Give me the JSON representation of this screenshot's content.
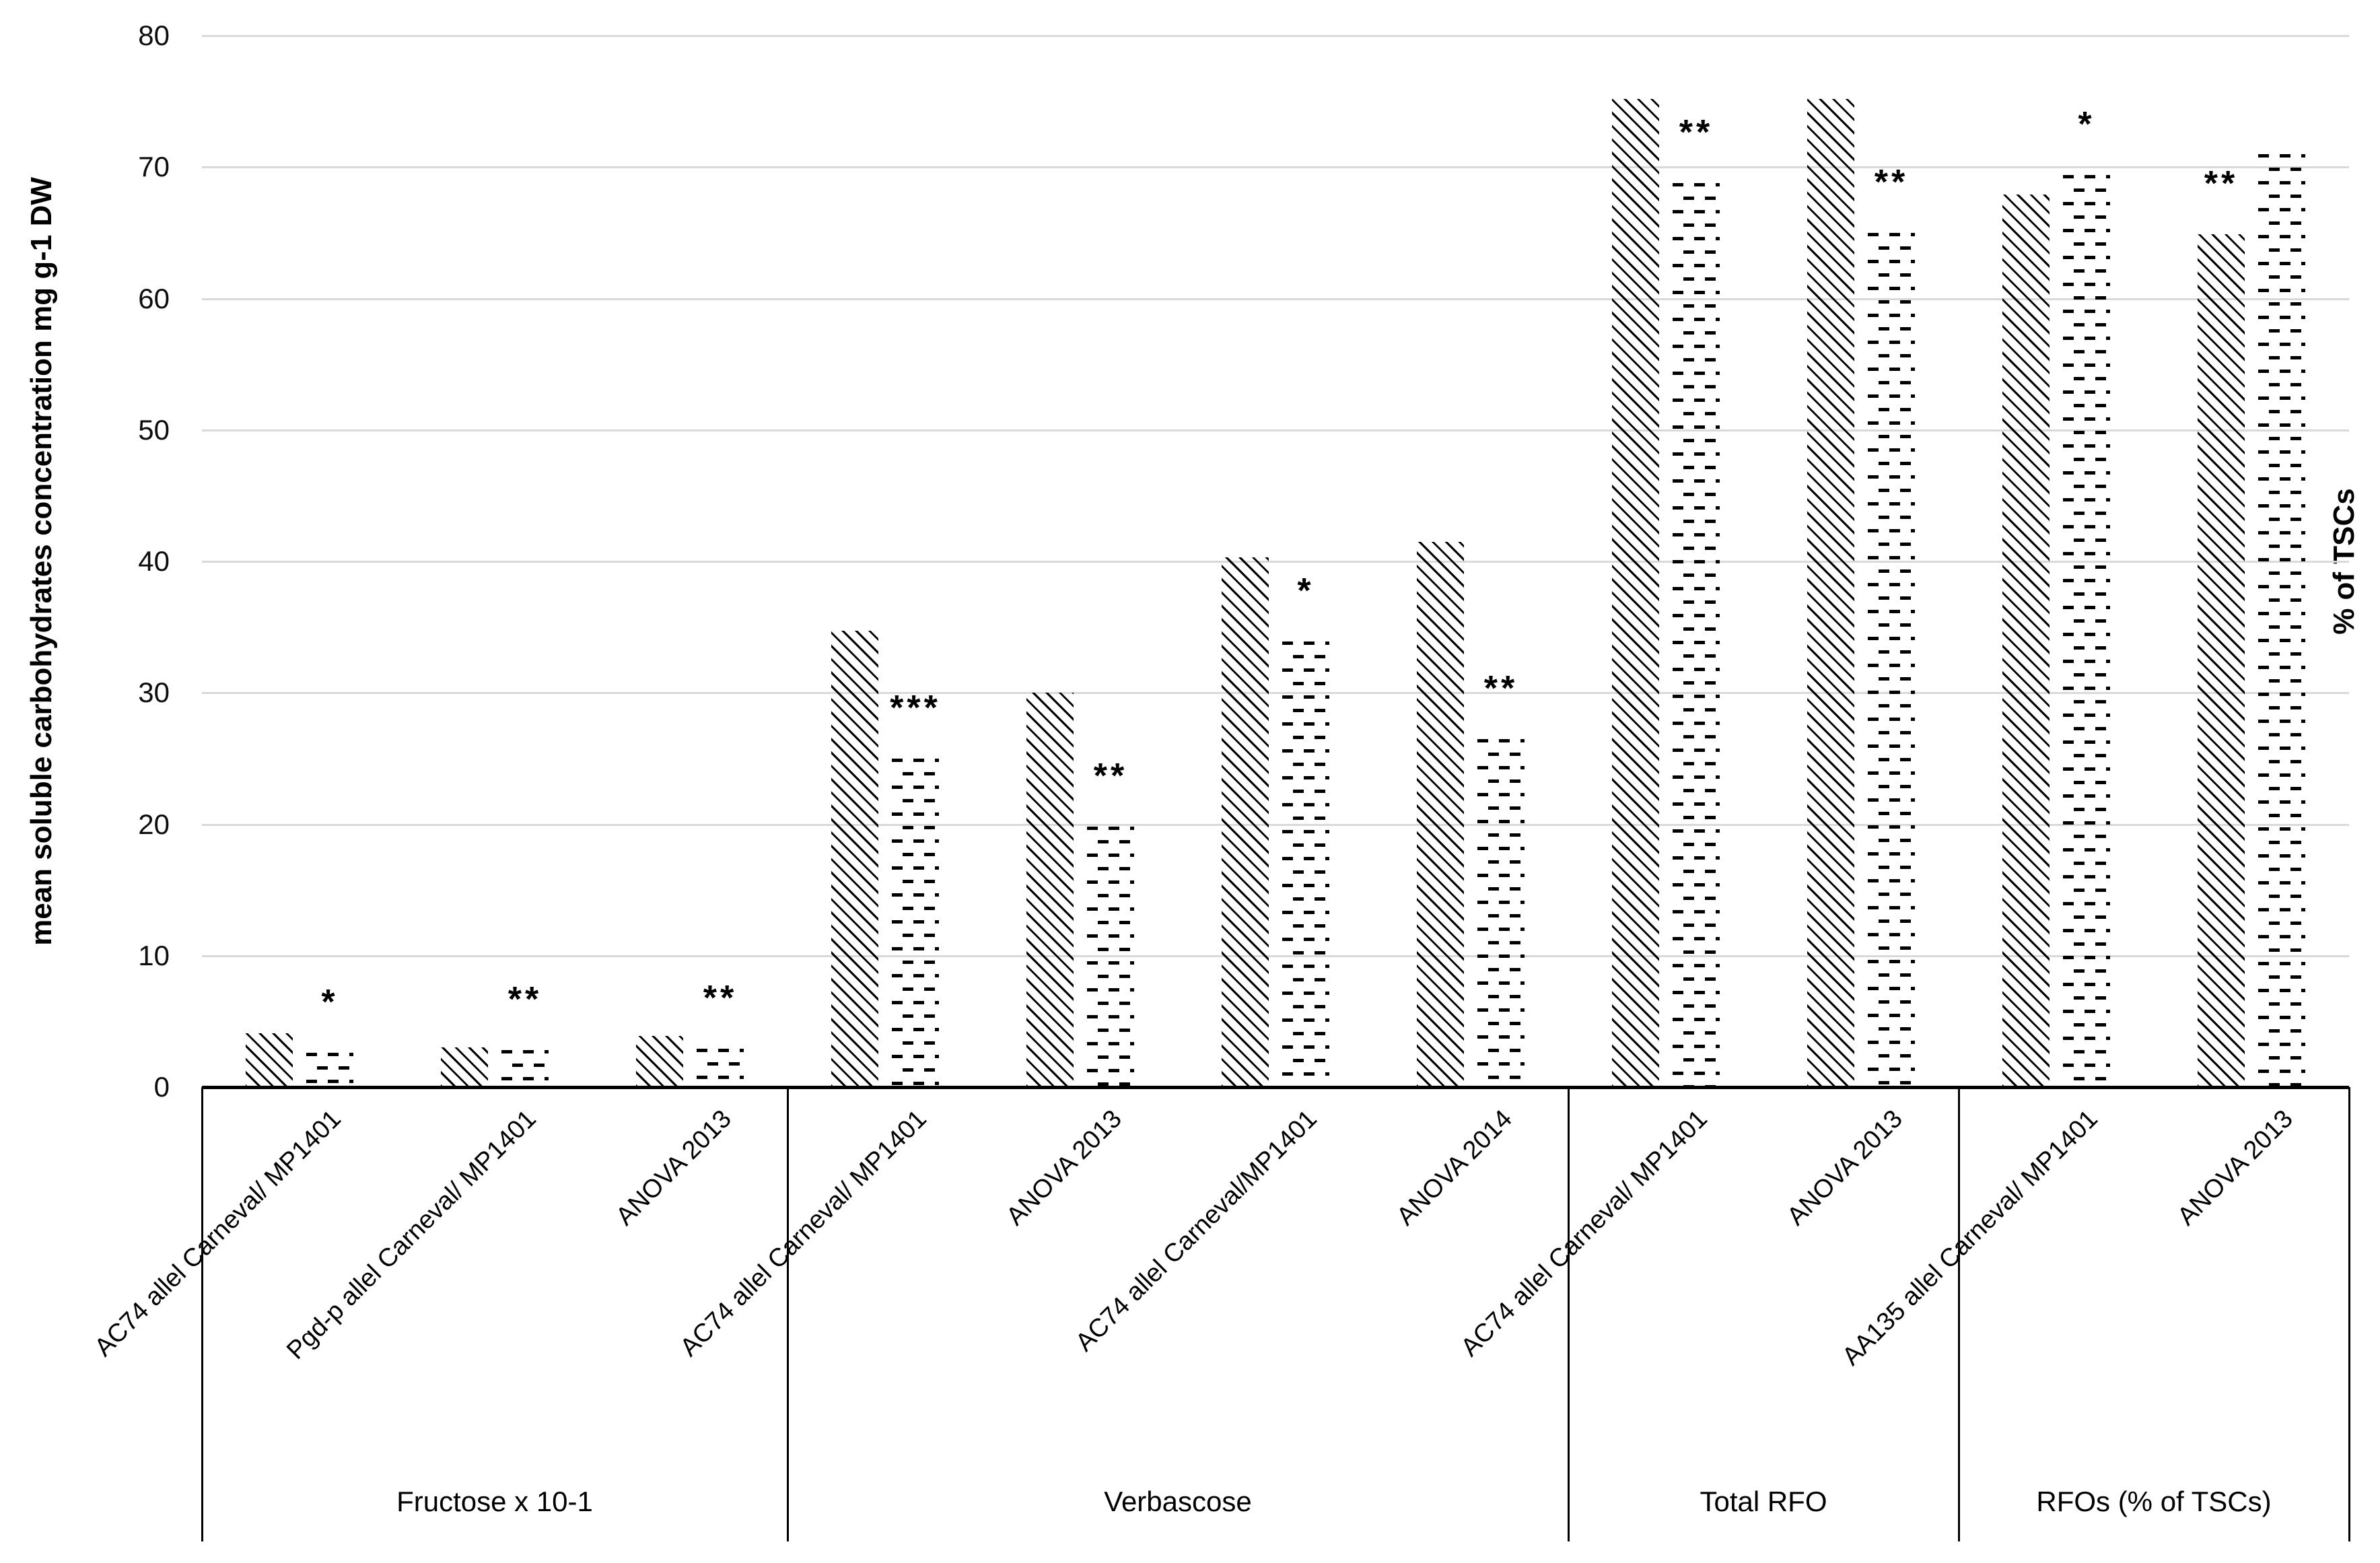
{
  "chart_data": {
    "type": "bar",
    "title": "",
    "ylabel": "mean soluble carbohydrates concentration mg g-1 DW",
    "ylabel_right": "% of TSCs",
    "ylim": [
      0,
      80
    ],
    "yticks": [
      0,
      10,
      20,
      30,
      40,
      50,
      60,
      70,
      80
    ],
    "grid": true,
    "gridline_color": "#d9d9d9",
    "axis_color": "#000000",
    "legend": "none",
    "series_styles": [
      {
        "name": "diagonal-hatch-bar",
        "pattern": "diagonal-stripes"
      },
      {
        "name": "horizontal-dash-bar",
        "pattern": "offset-horizontal-dashes"
      }
    ],
    "groups": [
      {
        "label": "Fructose x 10-1",
        "items": [
          {
            "category": "AC74 allel Carneval/ MP1401",
            "hatched": 4.1,
            "dashed": 2.6,
            "significance": "*",
            "significance_over": "dashed"
          },
          {
            "category": "Pgd-p allel Carneval/ MP1401",
            "hatched": 3.0,
            "dashed": 2.8,
            "significance": "**",
            "significance_over": "dashed"
          },
          {
            "category": "ANOVA 2013",
            "hatched": 3.9,
            "dashed": 2.9,
            "significance": "**",
            "significance_over": "dashed"
          }
        ]
      },
      {
        "label": "Verbascose",
        "items": [
          {
            "category": "AC74 allel Carneval/ MP1401",
            "hatched": 34.7,
            "dashed": 25.0,
            "significance": "***",
            "significance_over": "dashed"
          },
          {
            "category": "ANOVA 2013",
            "hatched": 30.0,
            "dashed": 19.8,
            "significance": "**",
            "significance_over": "dashed"
          },
          {
            "category": "AC74 allel Carneval/MP1401",
            "hatched": 40.3,
            "dashed": 33.9,
            "significance": "*",
            "significance_over": "dashed"
          },
          {
            "category": "ANOVA 2014",
            "hatched": 41.5,
            "dashed": 26.5,
            "significance": "**",
            "significance_over": "dashed"
          }
        ]
      },
      {
        "label": "Total RFO",
        "items": [
          {
            "category": "AC74 allel Carneval/ MP1401",
            "hatched": 75.2,
            "dashed": 68.8,
            "significance": "**",
            "significance_over": "dashed"
          },
          {
            "category": "ANOVA 2013",
            "hatched": 75.2,
            "dashed": 65.0,
            "significance": "**",
            "significance_over": "dashed"
          }
        ]
      },
      {
        "label": "RFOs (% of TSCs)",
        "items": [
          {
            "category": "AA135 allel Carneval/ MP1401",
            "hatched": 67.9,
            "dashed": 69.4,
            "significance": "*",
            "significance_over": "dashed"
          },
          {
            "category": "ANOVA 2013",
            "hatched": 64.9,
            "dashed": 71.0,
            "significance": "**",
            "significance_over": "hatched"
          }
        ]
      }
    ]
  }
}
